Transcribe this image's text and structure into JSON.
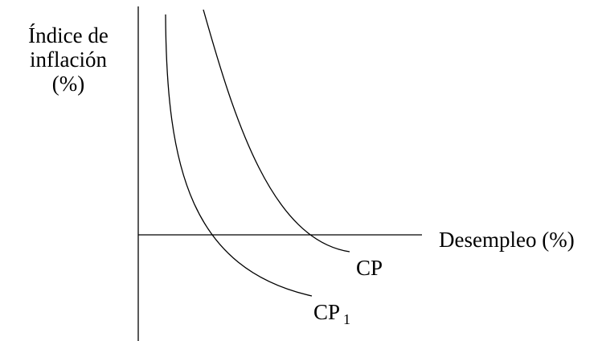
{
  "y_axis_label": [
    "Índice de",
    "inflación",
    "(%)"
  ],
  "x_axis_label": "Desempleo (%)",
  "curves": [
    {
      "label": "CP"
    },
    {
      "label": "CP",
      "subscript": "1"
    }
  ]
}
